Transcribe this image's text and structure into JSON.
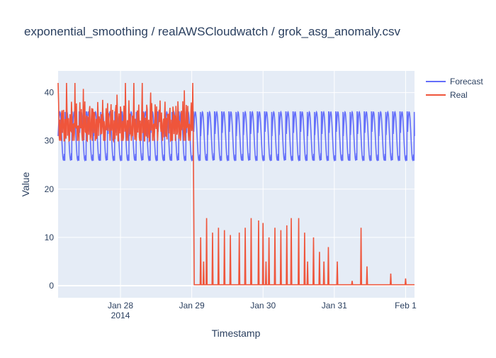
{
  "chart_data": {
    "type": "line",
    "title": "exponential_smoothing / realAWSCloudwatch / grok_asg_anomaly.csv",
    "xlabel": "Timestamp",
    "ylabel": "Value",
    "x_range": [
      "2014-01-27 03:00",
      "2014-02-01 03:00"
    ],
    "ylim": [
      -2.5,
      44.5
    ],
    "x_ticks": [
      {
        "at": "2014-01-28 00:00",
        "label": "Jan 28",
        "sublabel": "2014"
      },
      {
        "at": "2014-01-29 00:00",
        "label": "Jan 29",
        "sublabel": ""
      },
      {
        "at": "2014-01-30 00:00",
        "label": "Jan 30",
        "sublabel": ""
      },
      {
        "at": "2014-01-31 00:00",
        "label": "Jan 31",
        "sublabel": ""
      },
      {
        "at": "2014-02-01 00:00",
        "label": "Feb 1",
        "sublabel": ""
      }
    ],
    "y_ticks": [
      0,
      10,
      20,
      30,
      40
    ],
    "grid": true,
    "legend_position": "top-right",
    "series": [
      {
        "name": "Forecast",
        "color": "#636efa",
        "description": "periodic oscillation",
        "base": 31,
        "swing": 5,
        "min": 26,
        "max": 36,
        "period_hours": 2.4,
        "x_start": "2014-01-27 03:00",
        "x_end": "2014-02-01 03:00"
      },
      {
        "name": "Real",
        "color": "#ef553b",
        "x_start": "2014-01-27 03:00",
        "drop_at": "2014-01-29 00:30",
        "before_drop_range": [
          30,
          42
        ],
        "after_drop_baseline": 0.2,
        "x_end": "2014-02-01 03:00",
        "spikes": [
          {
            "x": "2014-01-29 03:00",
            "y": 10
          },
          {
            "x": "2014-01-29 04:00",
            "y": 5
          },
          {
            "x": "2014-01-29 05:00",
            "y": 14
          },
          {
            "x": "2014-01-29 07:00",
            "y": 11
          },
          {
            "x": "2014-01-29 09:00",
            "y": 12
          },
          {
            "x": "2014-01-29 11:00",
            "y": 11.5
          },
          {
            "x": "2014-01-29 13:00",
            "y": 10.5
          },
          {
            "x": "2014-01-29 16:00",
            "y": 11
          },
          {
            "x": "2014-01-29 18:00",
            "y": 12
          },
          {
            "x": "2014-01-29 20:00",
            "y": 14
          },
          {
            "x": "2014-01-29 22:30",
            "y": 13.5
          },
          {
            "x": "2014-01-30 00:00",
            "y": 13
          },
          {
            "x": "2014-01-30 01:00",
            "y": 5
          },
          {
            "x": "2014-01-30 02:00",
            "y": 10
          },
          {
            "x": "2014-01-30 04:00",
            "y": 12
          },
          {
            "x": "2014-01-30 06:00",
            "y": 11.5
          },
          {
            "x": "2014-01-30 08:00",
            "y": 12.5
          },
          {
            "x": "2014-01-30 09:30",
            "y": 14
          },
          {
            "x": "2014-01-30 12:00",
            "y": 14
          },
          {
            "x": "2014-01-30 14:00",
            "y": 11
          },
          {
            "x": "2014-01-30 15:00",
            "y": 5
          },
          {
            "x": "2014-01-30 17:00",
            "y": 10
          },
          {
            "x": "2014-01-30 19:00",
            "y": 7
          },
          {
            "x": "2014-01-30 20:30",
            "y": 5
          },
          {
            "x": "2014-01-30 22:00",
            "y": 8
          },
          {
            "x": "2014-01-31 01:00",
            "y": 5
          },
          {
            "x": "2014-01-31 06:00",
            "y": 1
          },
          {
            "x": "2014-01-31 09:00",
            "y": 12
          },
          {
            "x": "2014-01-31 11:00",
            "y": 4
          },
          {
            "x": "2014-01-31 19:00",
            "y": 2.5
          },
          {
            "x": "2014-02-01 00:00",
            "y": 1.5
          }
        ]
      }
    ]
  }
}
